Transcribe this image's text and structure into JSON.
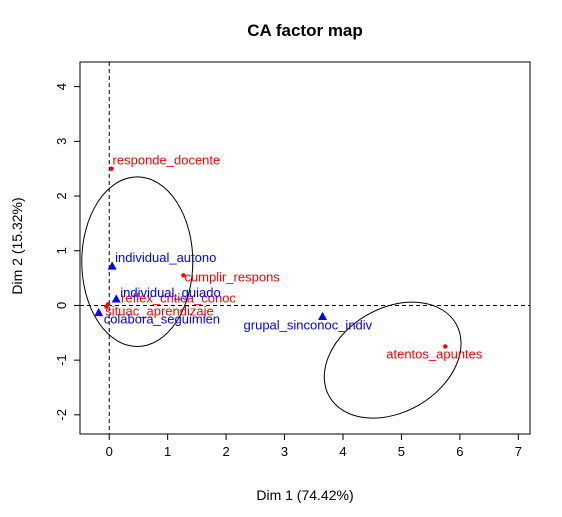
{
  "chart_data": {
    "type": "scatter",
    "title": "CA factor map",
    "xlabel": "Dim 1 (74.42%)",
    "ylabel": "Dim 2 (15.32%)",
    "xlim": [
      -0.5,
      7.2
    ],
    "ylim": [
      -2.35,
      4.45
    ],
    "xticks": [
      0,
      1,
      2,
      3,
      4,
      5,
      6,
      7
    ],
    "yticks": [
      -2,
      -1,
      0,
      1,
      2,
      3,
      4
    ],
    "reference_lines": {
      "x": 0,
      "y": 0,
      "style": "dashed"
    },
    "colors": {
      "rows": "#ff0000",
      "columns": "#0000ff",
      "ellipse": "#000000"
    },
    "series": [
      {
        "marker": "circle",
        "color": "#ff0000",
        "points": [
          {
            "label": "responde_docente",
            "x": 0.04,
            "y": 2.5
          },
          {
            "label": "cumplir_respons",
            "x": 1.27,
            "y": 0.55
          },
          {
            "label": "reflex_critica_conoc",
            "x": -0.02,
            "y": 0.02
          },
          {
            "label": "situac_aprendizaje",
            "x": -0.05,
            "y": -0.02
          },
          {
            "label": "atentos_apuntes",
            "x": 5.75,
            "y": -0.75
          }
        ]
      },
      {
        "marker": "triangle",
        "color": "#0000ff",
        "points": [
          {
            "label": "individual_autono",
            "x": 0.05,
            "y": 0.72
          },
          {
            "label": "individual_guiado",
            "x": 0.12,
            "y": 0.12
          },
          {
            "label": "colabora_seguimien",
            "x": -0.18,
            "y": -0.13
          },
          {
            "label": "grupal_sinconoc_indiv",
            "x": 3.65,
            "y": -0.2
          }
        ]
      }
    ],
    "ellipses": [
      {
        "cx": 0.48,
        "cy": 0.8,
        "rx": 0.95,
        "ry": 1.55
      },
      {
        "cx": 4.85,
        "cy": -1.0,
        "rx": 1.25,
        "ry": 0.95,
        "rotation": -30
      }
    ]
  }
}
